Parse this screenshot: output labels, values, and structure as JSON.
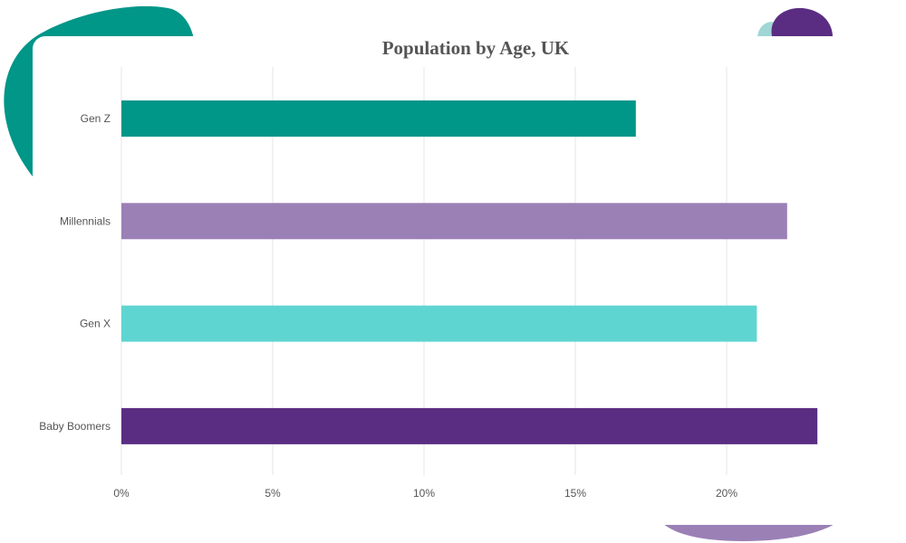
{
  "chart_data": {
    "type": "bar",
    "orientation": "horizontal",
    "title": "Population by Age, UK",
    "xlabel": "",
    "ylabel": "",
    "categories": [
      "Gen Z",
      "Millennials",
      "Gen X",
      "Baby Boomers"
    ],
    "values": [
      17,
      22,
      21,
      23
    ],
    "bar_colors": [
      "#009688",
      "#9b80b6",
      "#5fd5d2",
      "#5a2d82"
    ],
    "x_ticks": [
      "0%",
      "5%",
      "10%",
      "15%",
      "20%"
    ],
    "xlim": [
      0,
      25
    ],
    "grid": "vertical",
    "legend": "none"
  },
  "decor_colors": {
    "teal": "#009688",
    "light_teal": "#a0d6d6",
    "purple": "#5a2d82",
    "lavender": "#9b80b6"
  }
}
